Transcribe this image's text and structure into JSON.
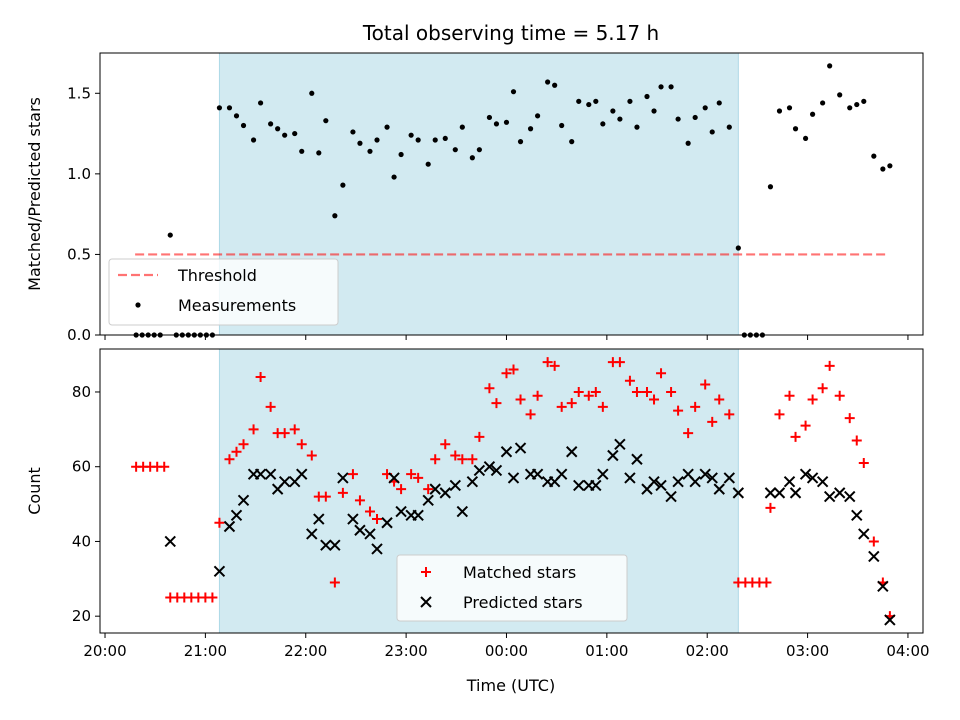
{
  "title": "Total observing time = 5.17 h",
  "xlabel": "Time (UTC)",
  "x_tick_labels": [
    "20:00",
    "21:00",
    "22:00",
    "23:00",
    "00:00",
    "01:00",
    "02:00",
    "03:00",
    "04:00"
  ],
  "colors": {
    "shade": "#add8e6",
    "threshold": "#ff0000",
    "measurement": "#000000",
    "matched": "#ff0000",
    "predicted": "#000000"
  },
  "chart_data": [
    {
      "type": "scatter",
      "ylabel": "Matched/Predicted stars",
      "xlim": [
        19.95,
        28.15
      ],
      "ylim": [
        0,
        1.75
      ],
      "y_ticks": [
        0.0,
        0.5,
        1.0,
        1.5
      ],
      "y_tick_labels": [
        "0.0",
        "0.5",
        "1.0",
        "1.5"
      ],
      "shaded_interval": [
        21.14,
        26.31
      ],
      "legend_location": "lower-left",
      "threshold": {
        "name": "Threshold",
        "y": 0.5,
        "x_range": [
          20.3,
          27.8
        ]
      },
      "series": [
        {
          "name": "Measurements",
          "points": [
            [
              20.31,
              0.0
            ],
            [
              20.37,
              0.0
            ],
            [
              20.43,
              0.0
            ],
            [
              20.49,
              0.0
            ],
            [
              20.55,
              0.0
            ],
            [
              20.65,
              0.62
            ],
            [
              20.71,
              0.0
            ],
            [
              20.77,
              0.0
            ],
            [
              20.83,
              0.0
            ],
            [
              20.89,
              0.0
            ],
            [
              20.95,
              0.0
            ],
            [
              21.01,
              0.0
            ],
            [
              21.07,
              0.0
            ],
            [
              21.14,
              1.41
            ],
            [
              21.24,
              1.41
            ],
            [
              21.31,
              1.36
            ],
            [
              21.38,
              1.3
            ],
            [
              21.48,
              1.21
            ],
            [
              21.55,
              1.44
            ],
            [
              21.65,
              1.31
            ],
            [
              21.72,
              1.28
            ],
            [
              21.79,
              1.24
            ],
            [
              21.89,
              1.25
            ],
            [
              21.96,
              1.14
            ],
            [
              22.06,
              1.5
            ],
            [
              22.13,
              1.13
            ],
            [
              22.2,
              1.33
            ],
            [
              22.29,
              0.74
            ],
            [
              22.37,
              0.93
            ],
            [
              22.47,
              1.26
            ],
            [
              22.54,
              1.19
            ],
            [
              22.64,
              1.14
            ],
            [
              22.71,
              1.21
            ],
            [
              22.81,
              1.29
            ],
            [
              22.88,
              0.98
            ],
            [
              22.95,
              1.12
            ],
            [
              23.05,
              1.24
            ],
            [
              23.12,
              1.21
            ],
            [
              23.22,
              1.06
            ],
            [
              23.29,
              1.21
            ],
            [
              23.39,
              1.22
            ],
            [
              23.49,
              1.15
            ],
            [
              23.56,
              1.29
            ],
            [
              23.66,
              1.1
            ],
            [
              23.73,
              1.15
            ],
            [
              23.83,
              1.35
            ],
            [
              23.9,
              1.31
            ],
            [
              24.0,
              1.32
            ],
            [
              24.07,
              1.51
            ],
            [
              24.14,
              1.2
            ],
            [
              24.24,
              1.28
            ],
            [
              24.31,
              1.36
            ],
            [
              24.41,
              1.57
            ],
            [
              24.48,
              1.55
            ],
            [
              24.55,
              1.3
            ],
            [
              24.65,
              1.2
            ],
            [
              24.72,
              1.45
            ],
            [
              24.82,
              1.43
            ],
            [
              24.89,
              1.45
            ],
            [
              24.96,
              1.31
            ],
            [
              25.06,
              1.39
            ],
            [
              25.13,
              1.34
            ],
            [
              25.23,
              1.45
            ],
            [
              25.3,
              1.29
            ],
            [
              25.4,
              1.48
            ],
            [
              25.47,
              1.39
            ],
            [
              25.54,
              1.54
            ],
            [
              25.64,
              1.54
            ],
            [
              25.71,
              1.34
            ],
            [
              25.81,
              1.19
            ],
            [
              25.88,
              1.35
            ],
            [
              25.98,
              1.41
            ],
            [
              26.05,
              1.26
            ],
            [
              26.12,
              1.44
            ],
            [
              26.22,
              1.29
            ],
            [
              26.31,
              0.54
            ],
            [
              26.37,
              0.0
            ],
            [
              26.43,
              0.0
            ],
            [
              26.49,
              0.0
            ],
            [
              26.55,
              0.0
            ],
            [
              26.63,
              0.92
            ],
            [
              26.72,
              1.39
            ],
            [
              26.82,
              1.41
            ],
            [
              26.88,
              1.28
            ],
            [
              26.98,
              1.22
            ],
            [
              27.05,
              1.37
            ],
            [
              27.15,
              1.44
            ],
            [
              27.22,
              1.67
            ],
            [
              27.32,
              1.49
            ],
            [
              27.42,
              1.41
            ],
            [
              27.49,
              1.43
            ],
            [
              27.56,
              1.45
            ],
            [
              27.66,
              1.11
            ],
            [
              27.75,
              1.03
            ],
            [
              27.82,
              1.05
            ]
          ]
        }
      ]
    },
    {
      "type": "scatter",
      "ylabel": "Count",
      "xlim": [
        19.95,
        28.15
      ],
      "ylim": [
        15.5,
        91.5
      ],
      "y_ticks": [
        20,
        40,
        60,
        80
      ],
      "y_tick_labels": [
        "20",
        "40",
        "60",
        "80"
      ],
      "shaded_interval": [
        21.14,
        26.31
      ],
      "legend_location": "lower-center",
      "series": [
        {
          "name": "Matched stars",
          "marker": "plus",
          "points": [
            [
              20.31,
              60
            ],
            [
              20.38,
              60
            ],
            [
              20.45,
              60
            ],
            [
              20.52,
              60
            ],
            [
              20.59,
              60
            ],
            [
              20.65,
              25
            ],
            [
              20.72,
              25
            ],
            [
              20.79,
              25
            ],
            [
              20.86,
              25
            ],
            [
              20.93,
              25
            ],
            [
              21.0,
              25
            ],
            [
              21.07,
              25
            ],
            [
              21.14,
              45
            ],
            [
              21.24,
              62
            ],
            [
              21.31,
              64
            ],
            [
              21.38,
              66
            ],
            [
              21.48,
              70
            ],
            [
              21.55,
              84
            ],
            [
              21.65,
              76
            ],
            [
              21.72,
              69
            ],
            [
              21.79,
              69
            ],
            [
              21.89,
              70
            ],
            [
              21.96,
              66
            ],
            [
              22.06,
              63
            ],
            [
              22.13,
              52
            ],
            [
              22.2,
              52
            ],
            [
              22.29,
              29
            ],
            [
              22.37,
              53
            ],
            [
              22.47,
              58
            ],
            [
              22.54,
              51
            ],
            [
              22.64,
              48
            ],
            [
              22.71,
              46
            ],
            [
              22.81,
              58
            ],
            [
              22.88,
              56
            ],
            [
              22.95,
              54
            ],
            [
              23.05,
              58
            ],
            [
              23.12,
              57
            ],
            [
              23.22,
              54
            ],
            [
              23.29,
              62
            ],
            [
              23.39,
              66
            ],
            [
              23.49,
              63
            ],
            [
              23.56,
              62
            ],
            [
              23.66,
              62
            ],
            [
              23.73,
              68
            ],
            [
              23.83,
              81
            ],
            [
              23.9,
              77
            ],
            [
              24.0,
              85
            ],
            [
              24.07,
              86
            ],
            [
              24.14,
              78
            ],
            [
              24.24,
              74
            ],
            [
              24.31,
              79
            ],
            [
              24.41,
              88
            ],
            [
              24.48,
              87
            ],
            [
              24.55,
              76
            ],
            [
              24.65,
              77
            ],
            [
              24.72,
              80
            ],
            [
              24.82,
              79
            ],
            [
              24.89,
              80
            ],
            [
              24.96,
              76
            ],
            [
              25.06,
              88
            ],
            [
              25.13,
              88
            ],
            [
              25.23,
              83
            ],
            [
              25.3,
              80
            ],
            [
              25.4,
              80
            ],
            [
              25.47,
              78
            ],
            [
              25.54,
              85
            ],
            [
              25.64,
              80
            ],
            [
              25.71,
              75
            ],
            [
              25.81,
              69
            ],
            [
              25.88,
              76
            ],
            [
              25.98,
              82
            ],
            [
              26.05,
              72
            ],
            [
              26.12,
              78
            ],
            [
              26.22,
              74
            ],
            [
              26.31,
              29
            ],
            [
              26.38,
              29
            ],
            [
              26.45,
              29
            ],
            [
              26.52,
              29
            ],
            [
              26.59,
              29
            ],
            [
              26.63,
              49
            ],
            [
              26.72,
              74
            ],
            [
              26.82,
              79
            ],
            [
              26.88,
              68
            ],
            [
              26.98,
              71
            ],
            [
              27.05,
              78
            ],
            [
              27.15,
              81
            ],
            [
              27.22,
              87
            ],
            [
              27.32,
              79
            ],
            [
              27.42,
              73
            ],
            [
              27.49,
              67
            ],
            [
              27.56,
              61
            ],
            [
              27.66,
              40
            ],
            [
              27.75,
              29
            ],
            [
              27.82,
              20
            ]
          ]
        },
        {
          "name": "Predicted stars",
          "marker": "cross",
          "points": [
            [
              20.65,
              40
            ],
            [
              21.14,
              32
            ],
            [
              21.24,
              44
            ],
            [
              21.31,
              47
            ],
            [
              21.38,
              51
            ],
            [
              21.48,
              58
            ],
            [
              21.55,
              58
            ],
            [
              21.65,
              58
            ],
            [
              21.72,
              54
            ],
            [
              21.79,
              56
            ],
            [
              21.89,
              56
            ],
            [
              21.96,
              58
            ],
            [
              22.06,
              42
            ],
            [
              22.13,
              46
            ],
            [
              22.2,
              39
            ],
            [
              22.29,
              39
            ],
            [
              22.37,
              57
            ],
            [
              22.47,
              46
            ],
            [
              22.54,
              43
            ],
            [
              22.64,
              42
            ],
            [
              22.71,
              38
            ],
            [
              22.81,
              45
            ],
            [
              22.88,
              57
            ],
            [
              22.95,
              48
            ],
            [
              23.05,
              47
            ],
            [
              23.12,
              47
            ],
            [
              23.22,
              51
            ],
            [
              23.29,
              54
            ],
            [
              23.39,
              53
            ],
            [
              23.49,
              55
            ],
            [
              23.56,
              48
            ],
            [
              23.66,
              56
            ],
            [
              23.73,
              59
            ],
            [
              23.83,
              60
            ],
            [
              23.9,
              59
            ],
            [
              24.0,
              64
            ],
            [
              24.07,
              57
            ],
            [
              24.14,
              65
            ],
            [
              24.24,
              58
            ],
            [
              24.31,
              58
            ],
            [
              24.41,
              56
            ],
            [
              24.48,
              56
            ],
            [
              24.55,
              58
            ],
            [
              24.65,
              64
            ],
            [
              24.72,
              55
            ],
            [
              24.82,
              55
            ],
            [
              24.89,
              55
            ],
            [
              24.96,
              58
            ],
            [
              25.06,
              63
            ],
            [
              25.13,
              66
            ],
            [
              25.23,
              57
            ],
            [
              25.3,
              62
            ],
            [
              25.4,
              54
            ],
            [
              25.47,
              56
            ],
            [
              25.54,
              55
            ],
            [
              25.64,
              52
            ],
            [
              25.71,
              56
            ],
            [
              25.81,
              58
            ],
            [
              25.88,
              56
            ],
            [
              25.98,
              58
            ],
            [
              26.05,
              57
            ],
            [
              26.12,
              54
            ],
            [
              26.22,
              57
            ],
            [
              26.31,
              53
            ],
            [
              26.63,
              53
            ],
            [
              26.72,
              53
            ],
            [
              26.82,
              56
            ],
            [
              26.88,
              53
            ],
            [
              26.98,
              58
            ],
            [
              27.05,
              57
            ],
            [
              27.15,
              56
            ],
            [
              27.22,
              52
            ],
            [
              27.32,
              53
            ],
            [
              27.42,
              52
            ],
            [
              27.49,
              47
            ],
            [
              27.56,
              42
            ],
            [
              27.66,
              36
            ],
            [
              27.75,
              28
            ],
            [
              27.82,
              19
            ]
          ]
        }
      ]
    }
  ]
}
